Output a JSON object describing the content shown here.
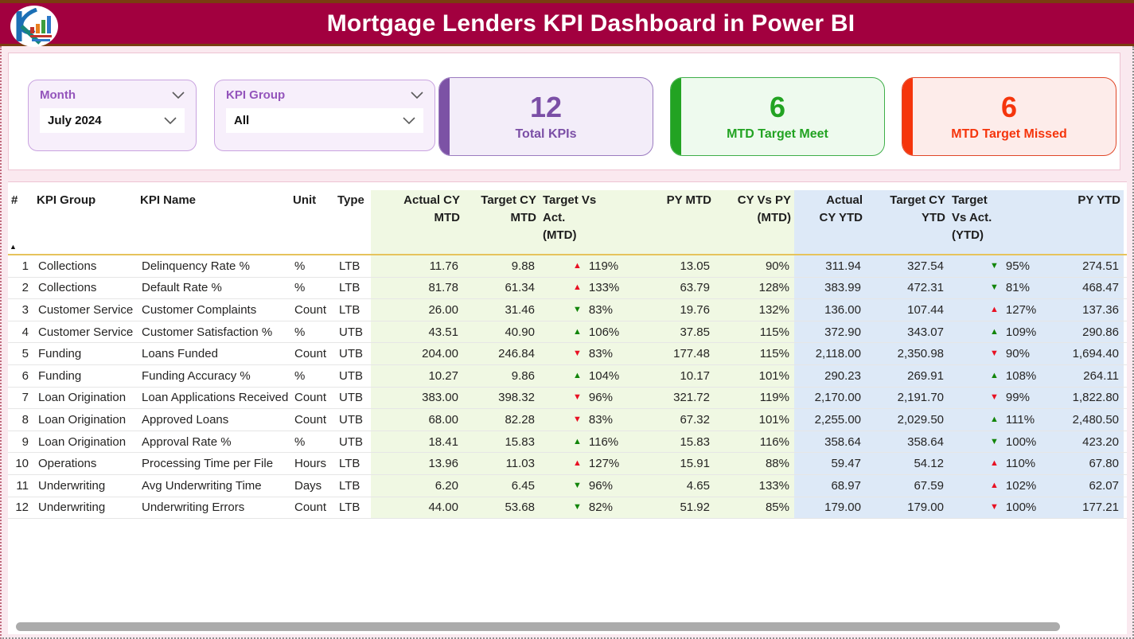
{
  "header": {
    "title": "Mortgage Lenders KPI Dashboard in Power BI",
    "logo_alt": "KR analytics logo"
  },
  "colors": {
    "header_bg": "#a2003f",
    "accent_purple": "#7c52a5",
    "accent_purple_text": "#7b4fa6",
    "accent_green": "#22a322",
    "accent_red": "#f5350c",
    "indicator_red": "#e81123",
    "indicator_green": "#12850a",
    "mtd_zone_bg": "#f0f8e3",
    "ytd_zone_bg": "#dde9f7"
  },
  "icons": {
    "sort_ascending": "▲",
    "arrow_up": "▲",
    "arrow_down": "▼"
  },
  "filters": {
    "month": {
      "label": "Month",
      "value": "July 2024"
    },
    "kpi_group": {
      "label": "KPI Group",
      "value": "All"
    }
  },
  "cards": {
    "total": {
      "value": "12",
      "label": "Total KPIs"
    },
    "meet": {
      "value": "6",
      "label": "MTD Target Meet"
    },
    "missed": {
      "value": "6",
      "label": "MTD Target Missed"
    }
  },
  "table": {
    "columns": {
      "idx": [
        "#"
      ],
      "kpi_group": [
        "KPI Group"
      ],
      "kpi_name": [
        "KPI Name"
      ],
      "unit": [
        "Unit"
      ],
      "type": [
        "Type"
      ],
      "actual_cy_mtd": [
        "Actual CY",
        "MTD"
      ],
      "target_cy_mtd": [
        "Target CY",
        "MTD"
      ],
      "tva_mtd": [
        "Target Vs",
        "Act.",
        "(MTD)"
      ],
      "py_mtd": [
        "PY MTD"
      ],
      "cy_vs_py_mtd": [
        "CY Vs PY",
        "(MTD)"
      ],
      "actual_cy_ytd": [
        "Actual",
        "CY YTD"
      ],
      "target_cy_ytd": [
        "Target CY",
        "YTD"
      ],
      "tva_ytd": [
        "Target",
        "Vs Act.",
        "(YTD)"
      ],
      "py_ytd": [
        "PY YTD"
      ]
    },
    "rows": [
      {
        "idx": "1",
        "kpi_group": "Collections",
        "kpi_name": "Delinquency Rate %",
        "unit": "%",
        "type": "LTB",
        "actual_cy_mtd": "11.76",
        "target_cy_mtd": "9.88",
        "tva_mtd": {
          "dir": "up",
          "color": "red",
          "value": "119%"
        },
        "py_mtd": "13.05",
        "cy_vs_py_mtd": "90%",
        "actual_cy_ytd": "311.94",
        "target_cy_ytd": "327.54",
        "tva_ytd": {
          "dir": "down",
          "color": "green",
          "value": "95%"
        },
        "py_ytd": "274.51"
      },
      {
        "idx": "2",
        "kpi_group": "Collections",
        "kpi_name": "Default Rate %",
        "unit": "%",
        "type": "LTB",
        "actual_cy_mtd": "81.78",
        "target_cy_mtd": "61.34",
        "tva_mtd": {
          "dir": "up",
          "color": "red",
          "value": "133%"
        },
        "py_mtd": "63.79",
        "cy_vs_py_mtd": "128%",
        "actual_cy_ytd": "383.99",
        "target_cy_ytd": "472.31",
        "tva_ytd": {
          "dir": "down",
          "color": "green",
          "value": "81%"
        },
        "py_ytd": "468.47"
      },
      {
        "idx": "3",
        "kpi_group": "Customer Service",
        "kpi_name": "Customer Complaints",
        "unit": "Count",
        "type": "LTB",
        "actual_cy_mtd": "26.00",
        "target_cy_mtd": "31.46",
        "tva_mtd": {
          "dir": "down",
          "color": "green",
          "value": "83%"
        },
        "py_mtd": "19.76",
        "cy_vs_py_mtd": "132%",
        "actual_cy_ytd": "136.00",
        "target_cy_ytd": "107.44",
        "tva_ytd": {
          "dir": "up",
          "color": "red",
          "value": "127%"
        },
        "py_ytd": "137.36"
      },
      {
        "idx": "4",
        "kpi_group": "Customer Service",
        "kpi_name": "Customer Satisfaction %",
        "unit": "%",
        "type": "UTB",
        "actual_cy_mtd": "43.51",
        "target_cy_mtd": "40.90",
        "tva_mtd": {
          "dir": "up",
          "color": "green",
          "value": "106%"
        },
        "py_mtd": "37.85",
        "cy_vs_py_mtd": "115%",
        "actual_cy_ytd": "372.90",
        "target_cy_ytd": "343.07",
        "tva_ytd": {
          "dir": "up",
          "color": "green",
          "value": "109%"
        },
        "py_ytd": "290.86"
      },
      {
        "idx": "5",
        "kpi_group": "Funding",
        "kpi_name": "Loans Funded",
        "unit": "Count",
        "type": "UTB",
        "actual_cy_mtd": "204.00",
        "target_cy_mtd": "246.84",
        "tva_mtd": {
          "dir": "down",
          "color": "red",
          "value": "83%"
        },
        "py_mtd": "177.48",
        "cy_vs_py_mtd": "115%",
        "actual_cy_ytd": "2,118.00",
        "target_cy_ytd": "2,350.98",
        "tva_ytd": {
          "dir": "down",
          "color": "red",
          "value": "90%"
        },
        "py_ytd": "1,694.40"
      },
      {
        "idx": "6",
        "kpi_group": "Funding",
        "kpi_name": "Funding Accuracy %",
        "unit": "%",
        "type": "UTB",
        "actual_cy_mtd": "10.27",
        "target_cy_mtd": "9.86",
        "tva_mtd": {
          "dir": "up",
          "color": "green",
          "value": "104%"
        },
        "py_mtd": "10.17",
        "cy_vs_py_mtd": "101%",
        "actual_cy_ytd": "290.23",
        "target_cy_ytd": "269.91",
        "tva_ytd": {
          "dir": "up",
          "color": "green",
          "value": "108%"
        },
        "py_ytd": "264.11"
      },
      {
        "idx": "7",
        "kpi_group": "Loan Origination",
        "kpi_name": "Loan Applications Received",
        "unit": "Count",
        "type": "UTB",
        "actual_cy_mtd": "383.00",
        "target_cy_mtd": "398.32",
        "tva_mtd": {
          "dir": "down",
          "color": "red",
          "value": "96%"
        },
        "py_mtd": "321.72",
        "cy_vs_py_mtd": "119%",
        "actual_cy_ytd": "2,170.00",
        "target_cy_ytd": "2,191.70",
        "tva_ytd": {
          "dir": "down",
          "color": "red",
          "value": "99%"
        },
        "py_ytd": "1,822.80"
      },
      {
        "idx": "8",
        "kpi_group": "Loan Origination",
        "kpi_name": "Approved Loans",
        "unit": "Count",
        "type": "UTB",
        "actual_cy_mtd": "68.00",
        "target_cy_mtd": "82.28",
        "tva_mtd": {
          "dir": "down",
          "color": "red",
          "value": "83%"
        },
        "py_mtd": "67.32",
        "cy_vs_py_mtd": "101%",
        "actual_cy_ytd": "2,255.00",
        "target_cy_ytd": "2,029.50",
        "tva_ytd": {
          "dir": "up",
          "color": "green",
          "value": "111%"
        },
        "py_ytd": "2,480.50"
      },
      {
        "idx": "9",
        "kpi_group": "Loan Origination",
        "kpi_name": "Approval Rate %",
        "unit": "%",
        "type": "UTB",
        "actual_cy_mtd": "18.41",
        "target_cy_mtd": "15.83",
        "tva_mtd": {
          "dir": "up",
          "color": "green",
          "value": "116%"
        },
        "py_mtd": "15.83",
        "cy_vs_py_mtd": "116%",
        "actual_cy_ytd": "358.64",
        "target_cy_ytd": "358.64",
        "tva_ytd": {
          "dir": "down",
          "color": "green",
          "value": "100%"
        },
        "py_ytd": "423.20"
      },
      {
        "idx": "10",
        "kpi_group": "Operations",
        "kpi_name": "Processing Time per File",
        "unit": "Hours",
        "type": "LTB",
        "actual_cy_mtd": "13.96",
        "target_cy_mtd": "11.03",
        "tva_mtd": {
          "dir": "up",
          "color": "red",
          "value": "127%"
        },
        "py_mtd": "15.91",
        "cy_vs_py_mtd": "88%",
        "actual_cy_ytd": "59.47",
        "target_cy_ytd": "54.12",
        "tva_ytd": {
          "dir": "up",
          "color": "red",
          "value": "110%"
        },
        "py_ytd": "67.80"
      },
      {
        "idx": "11",
        "kpi_group": "Underwriting",
        "kpi_name": "Avg Underwriting Time",
        "unit": "Days",
        "type": "LTB",
        "actual_cy_mtd": "6.20",
        "target_cy_mtd": "6.45",
        "tva_mtd": {
          "dir": "down",
          "color": "green",
          "value": "96%"
        },
        "py_mtd": "4.65",
        "cy_vs_py_mtd": "133%",
        "actual_cy_ytd": "68.97",
        "target_cy_ytd": "67.59",
        "tva_ytd": {
          "dir": "up",
          "color": "red",
          "value": "102%"
        },
        "py_ytd": "62.07"
      },
      {
        "idx": "12",
        "kpi_group": "Underwriting",
        "kpi_name": "Underwriting Errors",
        "unit": "Count",
        "type": "LTB",
        "actual_cy_mtd": "44.00",
        "target_cy_mtd": "53.68",
        "tva_mtd": {
          "dir": "down",
          "color": "green",
          "value": "82%"
        },
        "py_mtd": "51.92",
        "cy_vs_py_mtd": "85%",
        "actual_cy_ytd": "179.00",
        "target_cy_ytd": "179.00",
        "tva_ytd": {
          "dir": "down",
          "color": "red",
          "value": "100%"
        },
        "py_ytd": "177.21"
      }
    ]
  }
}
